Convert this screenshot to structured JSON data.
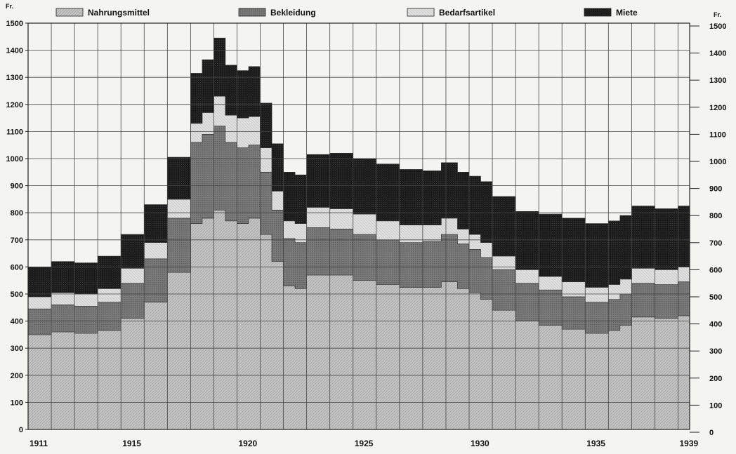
{
  "chart_data": {
    "type": "area",
    "stacked": true,
    "title": "",
    "xlabel": "",
    "ylabel": "Fr.",
    "ylabel_right": "Fr.",
    "ylim": [
      0,
      1500
    ],
    "xlim": [
      1911,
      1939.5
    ],
    "grid": true,
    "legend_position": "top",
    "y_ticks": [
      0,
      100,
      200,
      300,
      400,
      500,
      600,
      700,
      800,
      900,
      1000,
      1100,
      1200,
      1300,
      1400,
      1500
    ],
    "x_tick_labels": [
      "1911",
      "1915",
      "1920",
      "1925",
      "1930",
      "1935",
      "1939"
    ],
    "x": [
      1911,
      1912,
      1913,
      1914,
      1915,
      1916,
      1917,
      1918,
      1918.5,
      1919,
      1919.5,
      1920,
      1920.5,
      1921,
      1921.5,
      1922,
      1922.5,
      1923,
      1924,
      1925,
      1926,
      1927,
      1928,
      1928.8,
      1929.5,
      1930,
      1930.5,
      1931,
      1932,
      1933,
      1934,
      1935,
      1936,
      1936.5,
      1937,
      1938,
      1939
    ],
    "series": [
      {
        "name": "Nahrungsmittel",
        "color": "#bdbdbd",
        "values": [
          350,
          360,
          355,
          365,
          410,
          470,
          580,
          760,
          780,
          810,
          770,
          760,
          780,
          720,
          620,
          530,
          520,
          570,
          570,
          550,
          535,
          525,
          525,
          545,
          520,
          505,
          480,
          440,
          400,
          385,
          370,
          355,
          365,
          385,
          415,
          410,
          420
        ]
      },
      {
        "name": "Bekleidung",
        "color": "#787878",
        "values": [
          95,
          100,
          100,
          105,
          130,
          160,
          200,
          300,
          310,
          310,
          290,
          280,
          270,
          230,
          190,
          175,
          170,
          175,
          170,
          170,
          165,
          165,
          170,
          175,
          165,
          160,
          155,
          150,
          140,
          130,
          120,
          115,
          115,
          115,
          125,
          125,
          125
        ]
      },
      {
        "name": "Bedarfsartikel",
        "color": "#dcdcdc",
        "values": [
          45,
          45,
          45,
          50,
          55,
          60,
          70,
          70,
          80,
          110,
          100,
          110,
          105,
          90,
          70,
          65,
          70,
          75,
          75,
          75,
          70,
          65,
          60,
          60,
          55,
          55,
          55,
          50,
          50,
          50,
          55,
          55,
          55,
          55,
          55,
          55,
          55
        ]
      },
      {
        "name": "Miete",
        "color": "#1c1c1c",
        "values": [
          110,
          115,
          115,
          120,
          125,
          140,
          155,
          185,
          195,
          215,
          185,
          175,
          185,
          165,
          175,
          180,
          180,
          195,
          205,
          205,
          210,
          205,
          200,
          205,
          210,
          215,
          225,
          220,
          215,
          230,
          235,
          235,
          235,
          235,
          230,
          225,
          225
        ]
      }
    ]
  }
}
